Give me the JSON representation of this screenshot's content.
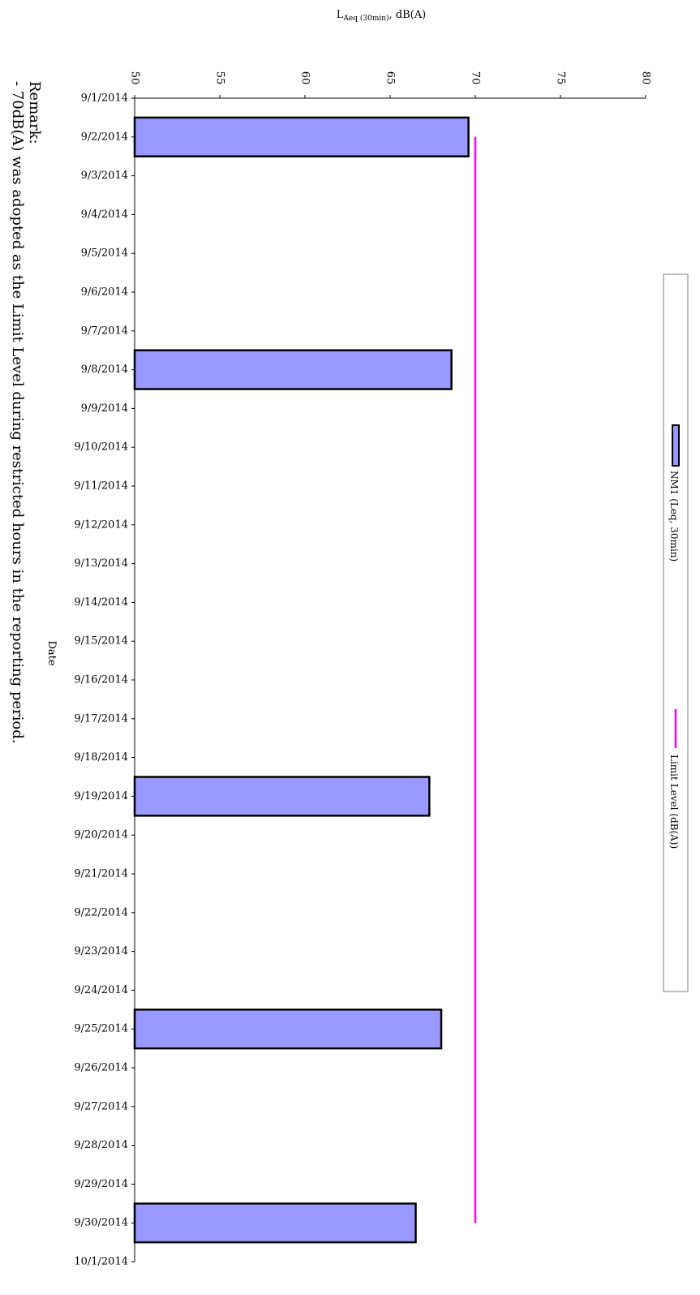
{
  "chart_data": {
    "type": "bar",
    "orientation": "horizontal",
    "categories": [
      "9/1/2014",
      "9/2/2014",
      "9/3/2014",
      "9/4/2014",
      "9/5/2014",
      "9/6/2014",
      "9/7/2014",
      "9/8/2014",
      "9/9/2014",
      "9/10/2014",
      "9/11/2014",
      "9/12/2014",
      "9/13/2014",
      "9/14/2014",
      "9/15/2014",
      "9/16/2014",
      "9/17/2014",
      "9/18/2014",
      "9/19/2014",
      "9/20/2014",
      "9/21/2014",
      "9/22/2014",
      "9/23/2014",
      "9/24/2014",
      "9/25/2014",
      "9/26/2014",
      "9/27/2014",
      "9/28/2014",
      "9/29/2014",
      "9/30/2014",
      "10/1/2014"
    ],
    "series": [
      {
        "name": "NM1 (Leq, 30min)",
        "kind": "bar",
        "color": "#9999ff",
        "points": [
          {
            "date": "9/2/2014",
            "value": 69.6
          },
          {
            "date": "9/8/2014",
            "value": 68.6
          },
          {
            "date": "9/19/2014",
            "value": 67.3
          },
          {
            "date": "9/25/2014",
            "value": 68.0
          },
          {
            "date": "9/30/2014",
            "value": 66.5
          }
        ]
      },
      {
        "name": "Limit Level (dB(A))",
        "kind": "line",
        "color": "#ff00ff",
        "points": [
          {
            "date": "9/2/2014",
            "value": 70
          },
          {
            "date": "9/30/2014",
            "value": 70
          }
        ]
      }
    ],
    "value_axis": {
      "label_main": "L",
      "label_sub": "Aeq (30min)",
      "label_tail": ", dB(A)",
      "min": 50,
      "max": 80,
      "ticks": [
        "50",
        "55",
        "60",
        "65",
        "70",
        "75",
        "80"
      ]
    },
    "category_axis_label": "Date",
    "grid": false,
    "legend_placement": "right"
  },
  "remark": {
    "heading": "Remark:",
    "line": "- 70dB(A) was adopted as the Limit Level during restricted hours in the reporting period."
  }
}
